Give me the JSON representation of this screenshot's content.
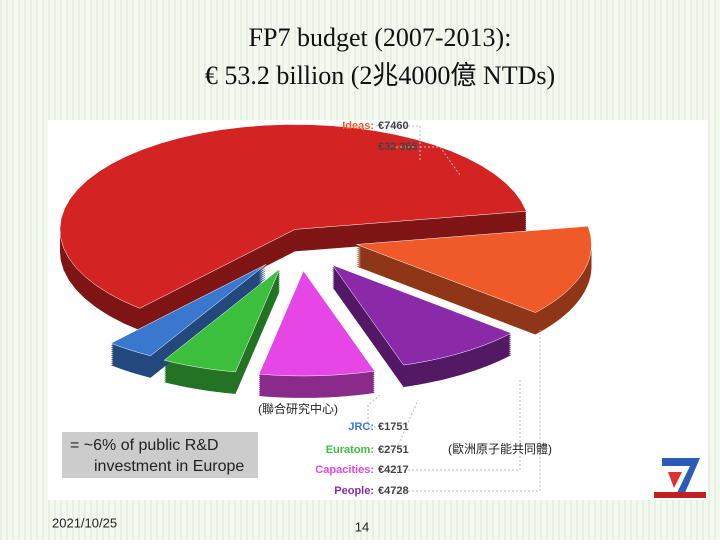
{
  "chart_data": {
    "type": "pie",
    "title": [
      "FP7 budget (2007-2013):",
      "€ 53.2 billion (2兆4000億 NTDs)"
    ],
    "categories": [
      "Ideas:",
      "Cooperation",
      "JRC:",
      "Euratom:",
      "Capacities:",
      "People:"
    ],
    "values": [
      7460,
      32365,
      1751,
      2751,
      4217,
      4728
    ],
    "value_labels": [
      "€7460",
      "€32 365",
      "€1751",
      "€2751",
      "€4217",
      "€4728"
    ],
    "colors": [
      "#f05a28",
      "#d42323",
      "#3a78d0",
      "#3cbf3c",
      "#e646e6",
      "#8a2aa8"
    ],
    "annotations": [
      "(聯合研究中心)",
      "(歐洲原子能共同體)"
    ],
    "note": [
      "= ~6% of public R&D",
      "investment in Europe"
    ]
  },
  "footer": {
    "date": "2021/10/25",
    "page": "14"
  }
}
